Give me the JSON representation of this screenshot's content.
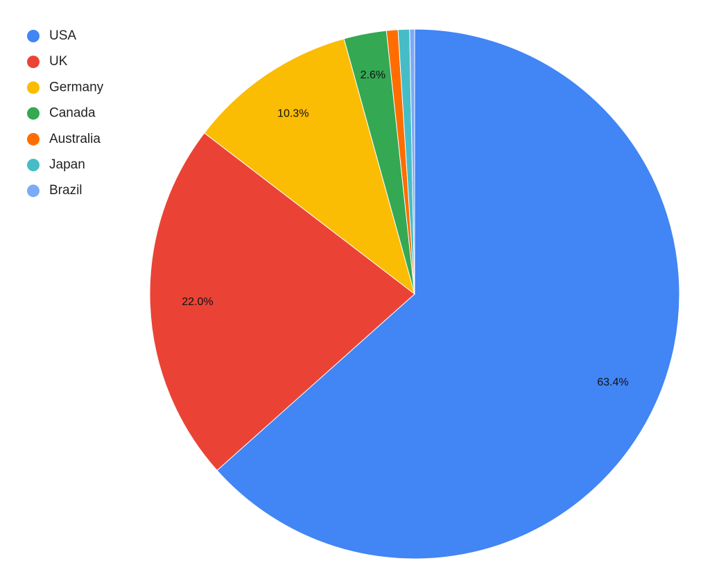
{
  "chart_data": {
    "type": "pie",
    "categories": [
      "USA",
      "UK",
      "Germany",
      "Canada",
      "Australia",
      "Japan",
      "Brazil"
    ],
    "values": [
      63.4,
      22.0,
      10.3,
      2.6,
      0.7,
      0.7,
      0.3
    ],
    "value_labels": [
      "63.4%",
      "22.0%",
      "10.3%",
      "2.6%",
      "",
      "",
      ""
    ],
    "colors": [
      "#4285f4",
      "#ea4335",
      "#fbbc04",
      "#34a853",
      "#ff6d01",
      "#46bdc6",
      "#7baaf7"
    ],
    "legend_position": "top-left",
    "start_angle": "12 o'clock",
    "direction": "clockwise"
  }
}
